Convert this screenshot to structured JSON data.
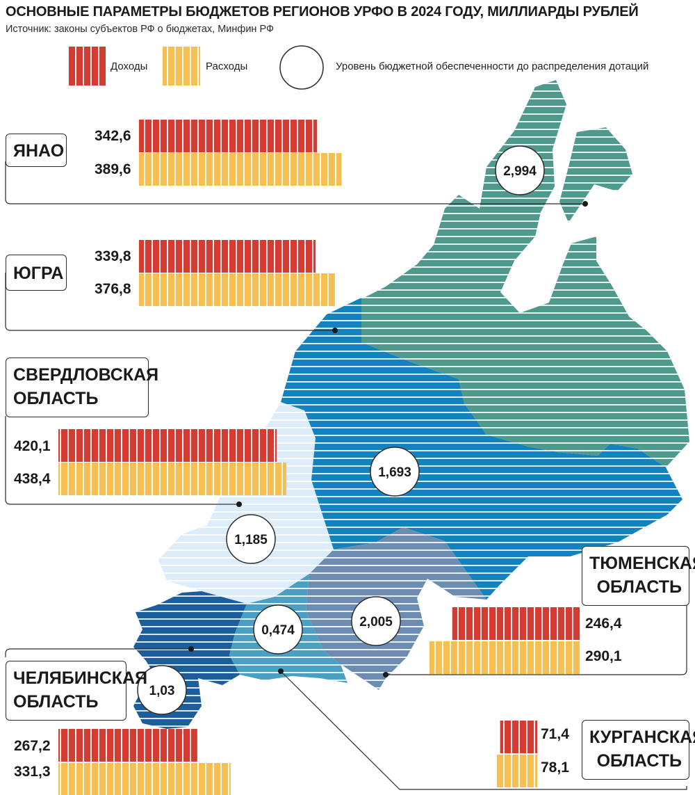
{
  "chart_data": {
    "type": "bar",
    "title": "ОСНОВНЫЕ ПАРАМЕТРЫ БЮДЖЕТОВ РЕГИОНОВ УРФО В 2024 ГОДУ, МИЛЛИАРДЫ РУБЛЕЙ",
    "subtitle": "Источник: законы субъектов РФ о бюджетах, Минфин РФ",
    "legend": {
      "income": "Доходы",
      "expense": "Расходы",
      "level": "Уровень бюджетной обеспеченности до распределения дотаций"
    },
    "categories": [
      "ЯНАО",
      "ЮГРА",
      "СВЕРДЛОВСКАЯ ОБЛАСТЬ",
      "ТЮМЕНСКАЯ ОБЛАСТЬ",
      "ЧЕЛЯБИНСКАЯ ОБЛАСТЬ",
      "КУРГАНСКАЯ ОБЛАСТЬ"
    ],
    "series": [
      {
        "name": "Доходы",
        "values": [
          342.6,
          339.8,
          420.1,
          246.4,
          267.2,
          71.4
        ]
      },
      {
        "name": "Расходы",
        "values": [
          389.6,
          376.8,
          438.4,
          290.1,
          331.3,
          78.1
        ]
      }
    ],
    "labels": {
      "income": [
        "342,6",
        "339,8",
        "420,1",
        "246,4",
        "267,2",
        "71,4"
      ],
      "expense": [
        "389,6",
        "376,8",
        "438,4",
        "290,1",
        "331,3",
        "78,1"
      ]
    },
    "regions": [
      {
        "line1": "ЯНАО",
        "line2": "",
        "level": 2.994,
        "level_label": "2,994"
      },
      {
        "line1": "ЮГРА",
        "line2": "",
        "level": 1.693,
        "level_label": "1,693"
      },
      {
        "line1": "СВЕРДЛОВСКАЯ",
        "line2": "ОБЛАСТЬ",
        "level": 1.185,
        "level_label": "1,185"
      },
      {
        "line1": "ТЮМЕНСКАЯ",
        "line2": "ОБЛАСТЬ",
        "level": 2.005,
        "level_label": "2,005"
      },
      {
        "line1": "ЧЕЛЯБИНСКАЯ",
        "line2": "ОБЛАСТЬ",
        "level": 1.03,
        "level_label": "1,03"
      },
      {
        "line1": "КУРГАНСКАЯ",
        "line2": "ОБЛАСТЬ",
        "level": 0.474,
        "level_label": "0,474"
      }
    ],
    "colors": {
      "income": "#d43c32",
      "expense": "#f7bf52",
      "yanao": "#4f9a8d",
      "yugra": "#1482be",
      "sverdlovsk": "#dcecf8",
      "tyumen": "#6d8cb2",
      "chelyabinsk": "#1b5e9b",
      "kurgan": "#4b9fc2"
    }
  }
}
